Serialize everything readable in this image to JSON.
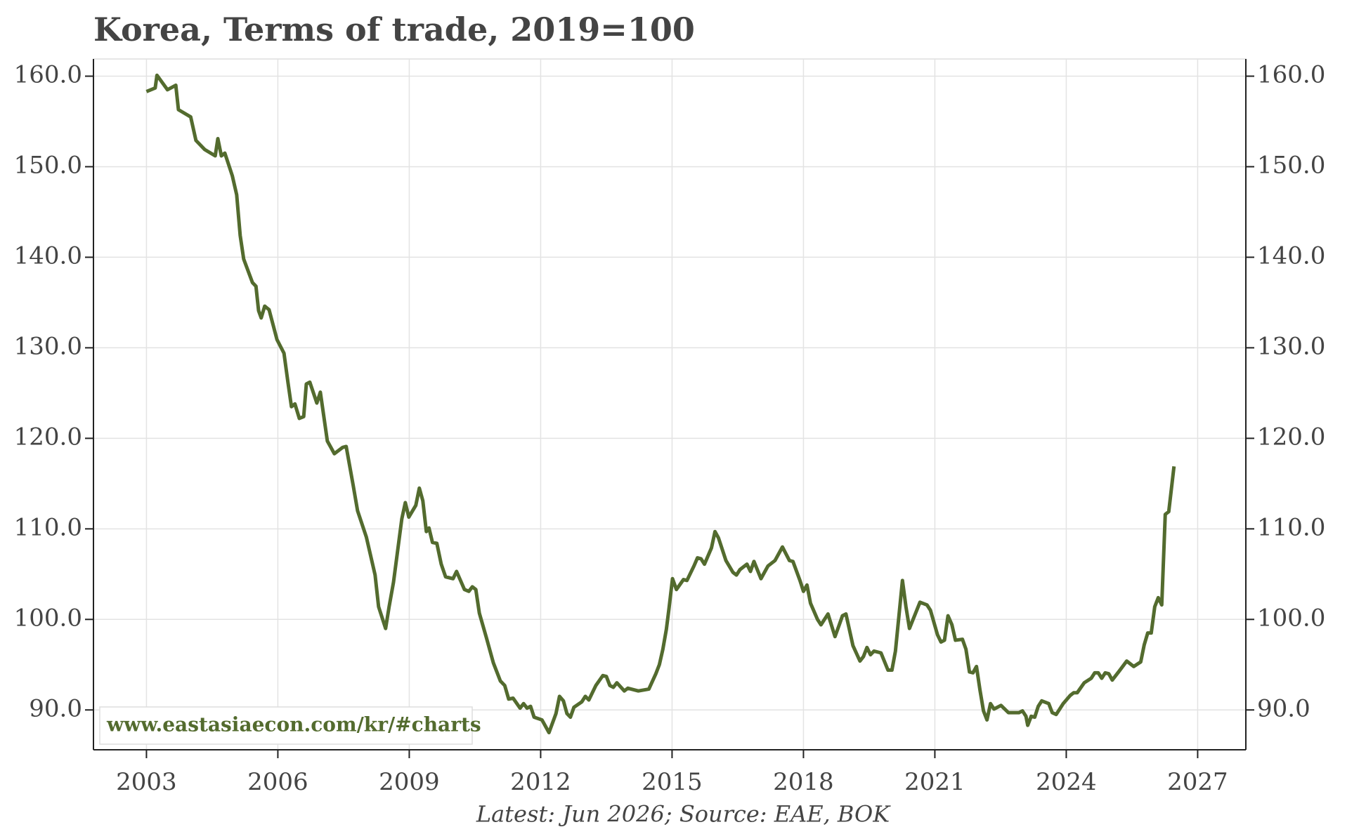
{
  "chart_data": {
    "type": "line",
    "title": "Korea, Terms of trade, 2019=100",
    "note": "Latest: Jun 2026; Source: EAE, BOK",
    "watermark": "www.eastasiaecon.com/kr/#charts",
    "grid": true,
    "xlim": [
      2001.79,
      2028.1
    ],
    "xticks": [
      2003,
      2006,
      2009,
      2012,
      2015,
      2018,
      2021,
      2024,
      2027
    ],
    "ylim": [
      85.6,
      161.9
    ],
    "yticks": [
      {
        "value": 90,
        "label": "90.0"
      },
      {
        "value": 100,
        "label": "100.0"
      },
      {
        "value": 110,
        "label": "110.0"
      },
      {
        "value": 120,
        "label": "120.0"
      },
      {
        "value": 130,
        "label": "130.0"
      },
      {
        "value": 140,
        "label": "140.0"
      },
      {
        "value": 150,
        "label": "150.0"
      },
      {
        "value": 160,
        "label": "160.0"
      }
    ],
    "y2lim": [
      85.6,
      161.9
    ],
    "y2ticks": [
      {
        "value": 90,
        "label": "90.0"
      },
      {
        "value": 100,
        "label": "100.0"
      },
      {
        "value": 110,
        "label": "110.0"
      },
      {
        "value": 120,
        "label": "120.0"
      },
      {
        "value": 130,
        "label": "130.0"
      },
      {
        "value": 140,
        "label": "140.0"
      },
      {
        "value": 150,
        "label": "150.0"
      },
      {
        "value": 160,
        "label": "160.0"
      }
    ],
    "x": [
      2003.0,
      2003.2,
      2003.24,
      2003.48,
      2003.67,
      2003.73,
      2004.01,
      2004.13,
      2004.33,
      2004.57,
      2004.63,
      2004.71,
      2004.79,
      2004.96,
      2005.06,
      2005.14,
      2005.22,
      2005.42,
      2005.5,
      2005.56,
      2005.62,
      2005.7,
      2005.8,
      2005.98,
      2006.14,
      2006.23,
      2006.31,
      2006.39,
      2006.49,
      2006.59,
      2006.65,
      2006.73,
      2006.89,
      2006.97,
      2007.13,
      2007.29,
      2007.48,
      2007.56,
      2007.72,
      2007.82,
      2008.02,
      2008.22,
      2008.3,
      2008.46,
      2008.54,
      2008.64,
      2008.83,
      2008.91,
      2008.99,
      2009.15,
      2009.23,
      2009.31,
      2009.39,
      2009.45,
      2009.53,
      2009.63,
      2009.73,
      2009.83,
      2010.0,
      2010.08,
      2010.26,
      2010.36,
      2010.44,
      2010.52,
      2010.6,
      2010.76,
      2010.92,
      2011.08,
      2011.18,
      2011.27,
      2011.37,
      2011.53,
      2011.61,
      2011.69,
      2011.77,
      2011.85,
      2012.03,
      2012.19,
      2012.35,
      2012.43,
      2012.52,
      2012.6,
      2012.68,
      2012.76,
      2012.94,
      2013.02,
      2013.1,
      2013.26,
      2013.42,
      2013.5,
      2013.58,
      2013.66,
      2013.74,
      2013.91,
      2013.99,
      2014.23,
      2014.47,
      2014.63,
      2014.71,
      2014.79,
      2014.87,
      2014.93,
      2015.01,
      2015.1,
      2015.26,
      2015.34,
      2015.5,
      2015.58,
      2015.66,
      2015.74,
      2015.9,
      2015.98,
      2016.06,
      2016.23,
      2016.39,
      2016.47,
      2016.55,
      2016.71,
      2016.79,
      2016.87,
      2017.03,
      2017.19,
      2017.35,
      2017.52,
      2017.68,
      2017.76,
      2017.92,
      2018.0,
      2018.08,
      2018.16,
      2018.32,
      2018.4,
      2018.56,
      2018.72,
      2018.81,
      2018.89,
      2018.97,
      2019.13,
      2019.29,
      2019.37,
      2019.45,
      2019.53,
      2019.61,
      2019.77,
      2019.93,
      2020.02,
      2020.1,
      2020.18,
      2020.26,
      2020.34,
      2020.42,
      2020.66,
      2020.82,
      2020.9,
      2021.06,
      2021.14,
      2021.22,
      2021.3,
      2021.39,
      2021.47,
      2021.63,
      2021.71,
      2021.79,
      2021.87,
      2021.95,
      2022.03,
      2022.11,
      2022.19,
      2022.27,
      2022.35,
      2022.51,
      2022.68,
      2022.92,
      2023.0,
      2023.08,
      2023.12,
      2023.2,
      2023.28,
      2023.36,
      2023.44,
      2023.6,
      2023.68,
      2023.77,
      2023.93,
      2024.09,
      2024.17,
      2024.25,
      2024.41,
      2024.57,
      2024.65,
      2024.73,
      2024.81,
      2024.89,
      2024.97,
      2025.05,
      2025.21,
      2025.38,
      2025.54,
      2025.7,
      2025.78,
      2025.86,
      2025.94,
      2026.02,
      2026.1,
      2026.18,
      2026.26,
      2026.34,
      2026.46
    ],
    "series": [
      {
        "name": "Terms of trade",
        "color": "#536b2e",
        "values": [
          158.3,
          158.7,
          160.1,
          158.5,
          159.0,
          156.3,
          155.5,
          152.9,
          151.9,
          151.2,
          153.1,
          151.2,
          151.5,
          149.0,
          146.9,
          142.4,
          139.8,
          137.2,
          136.8,
          134.1,
          133.3,
          134.6,
          134.2,
          130.9,
          129.4,
          126.2,
          123.5,
          123.8,
          122.2,
          122.4,
          126.0,
          126.2,
          123.9,
          125.1,
          119.7,
          118.3,
          119.0,
          119.1,
          114.8,
          112.0,
          109.1,
          104.9,
          101.4,
          99.0,
          101.4,
          104.1,
          111.1,
          112.9,
          111.3,
          112.6,
          114.5,
          113.1,
          109.7,
          110.1,
          108.5,
          108.4,
          106.1,
          104.7,
          104.5,
          105.3,
          103.3,
          103.1,
          103.6,
          103.3,
          100.7,
          98.0,
          95.2,
          93.2,
          92.7,
          91.2,
          91.3,
          90.2,
          90.7,
          90.2,
          90.4,
          89.2,
          88.9,
          87.5,
          89.6,
          91.5,
          91.0,
          89.6,
          89.2,
          90.3,
          90.9,
          91.5,
          91.1,
          92.7,
          93.8,
          93.7,
          92.7,
          92.5,
          93.0,
          92.1,
          92.4,
          92.1,
          92.3,
          94.0,
          95.0,
          96.7,
          98.9,
          101.2,
          104.5,
          103.3,
          104.4,
          104.3,
          105.9,
          106.8,
          106.7,
          106.1,
          107.9,
          109.7,
          109.0,
          106.5,
          105.2,
          104.9,
          105.5,
          106.1,
          105.3,
          106.4,
          104.5,
          105.9,
          106.5,
          108.0,
          106.5,
          106.4,
          104.3,
          103.1,
          103.8,
          101.8,
          100.0,
          99.4,
          100.6,
          98.1,
          99.3,
          100.4,
          100.6,
          97.1,
          95.4,
          95.9,
          96.9,
          96.1,
          96.5,
          96.3,
          94.4,
          94.4,
          96.5,
          100.4,
          104.3,
          101.4,
          99.0,
          101.9,
          101.6,
          101.0,
          98.3,
          97.5,
          97.7,
          100.4,
          99.4,
          97.7,
          97.8,
          96.7,
          94.2,
          94.1,
          94.8,
          92.2,
          89.9,
          88.9,
          90.7,
          90.1,
          90.5,
          89.7,
          89.7,
          89.9,
          89.3,
          88.3,
          89.3,
          89.2,
          90.4,
          91.0,
          90.7,
          89.7,
          89.5,
          90.7,
          91.6,
          91.9,
          91.9,
          93.0,
          93.5,
          94.1,
          94.1,
          93.5,
          94.1,
          94.0,
          93.3,
          94.3,
          95.4,
          94.8,
          95.3,
          97.2,
          98.5,
          98.5,
          101.4,
          102.4,
          101.6,
          111.6,
          111.9,
          116.9
        ]
      }
    ]
  }
}
